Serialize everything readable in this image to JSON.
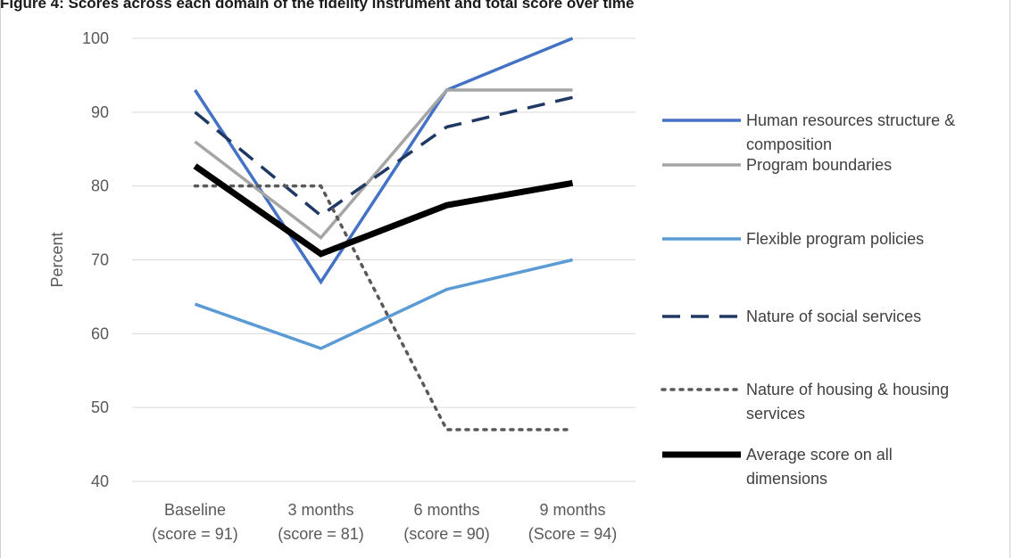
{
  "title": "Figure 4: Scores across each domain of the fidelity instrument and total score over time",
  "chart_data": {
    "type": "line",
    "title": "",
    "xlabel": "",
    "ylabel": "Percent",
    "ylim": [
      40,
      100
    ],
    "yticks": [
      40,
      50,
      60,
      70,
      80,
      90,
      100
    ],
    "grid": true,
    "legend_position": "right",
    "categories": [
      [
        "Baseline",
        "(score = 91)"
      ],
      [
        "3 months",
        "(score = 81)"
      ],
      [
        "6 months",
        "(score = 90)"
      ],
      [
        "9 months",
        "(Score = 94)"
      ]
    ],
    "series": [
      {
        "name": [
          "Human resources structure &",
          "composition"
        ],
        "values": [
          93,
          67,
          93,
          100
        ],
        "color": "#4472C4",
        "style": "solid",
        "width": 3.5
      },
      {
        "name": [
          "Program boundaries"
        ],
        "values": [
          86,
          73,
          93,
          93
        ],
        "color": "#A5A5A5",
        "style": "solid",
        "width": 3.5
      },
      {
        "name": [
          "Flexible program policies"
        ],
        "values": [
          64,
          58,
          66,
          70
        ],
        "color": "#5B9BD5",
        "style": "solid",
        "width": 3.5
      },
      {
        "name": [
          "Nature of social services"
        ],
        "values": [
          90,
          76,
          88,
          92
        ],
        "color": "#203864",
        "style": "dashed",
        "width": 3.5
      },
      {
        "name": [
          "Nature of housing & housing",
          "services"
        ],
        "values": [
          80,
          80,
          47,
          47
        ],
        "color": "#595959",
        "style": "dotted",
        "width": 3.5
      },
      {
        "name": [
          "Average score on all",
          "dimensions"
        ],
        "values": [
          82.7,
          70.8,
          77.4,
          80.4
        ],
        "color": "#000000",
        "style": "solid",
        "width": 7
      }
    ]
  }
}
